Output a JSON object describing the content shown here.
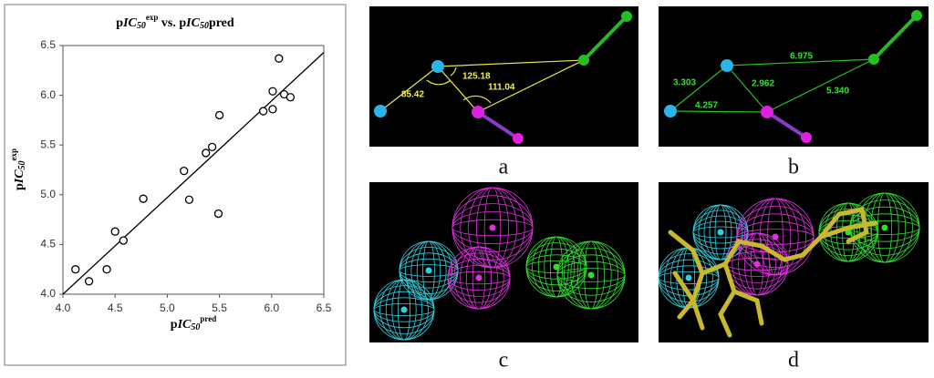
{
  "chart_data": {
    "type": "scatter",
    "title": [
      "p",
      "IC",
      "50",
      "exp",
      " vs. ",
      "p",
      "IC",
      "50",
      "pred"
    ],
    "x_label": [
      "p",
      "IC",
      "50",
      "pred"
    ],
    "y_label": [
      "p",
      "IC",
      "50",
      "exp"
    ],
    "x": [
      4.12,
      4.25,
      4.42,
      4.5,
      4.58,
      4.77,
      5.16,
      5.21,
      5.37,
      5.43,
      5.49,
      5.5,
      5.92,
      6.01,
      6.01,
      6.07,
      6.12,
      6.18
    ],
    "values": [
      4.25,
      4.13,
      4.25,
      4.63,
      4.54,
      4.96,
      5.24,
      4.95,
      5.42,
      5.48,
      4.81,
      5.8,
      5.84,
      5.86,
      6.04,
      6.37,
      6.01,
      5.98
    ],
    "trend_line": {
      "x": [
        4.0,
        6.5
      ],
      "y": [
        4.0,
        6.43
      ]
    },
    "xlim": [
      4.0,
      6.5
    ],
    "xticks": [
      {
        "value": 4.0,
        "label": "4.0"
      },
      {
        "value": 4.5,
        "label": "4.5"
      },
      {
        "value": 5.0,
        "label": "5.0"
      },
      {
        "value": 5.5,
        "label": "5.5"
      },
      {
        "value": 6.0,
        "label": "6.0"
      },
      {
        "value": 6.5,
        "label": "6.5"
      }
    ],
    "ylim": [
      4.0,
      6.5
    ],
    "yticks": [
      {
        "value": 4.0,
        "label": "4.0"
      },
      {
        "value": 4.5,
        "label": "4.5"
      },
      {
        "value": 5.0,
        "label": "5.0"
      },
      {
        "value": 5.5,
        "label": "5.5"
      },
      {
        "value": 6.0,
        "label": "6.0"
      },
      {
        "value": 6.5,
        "label": "6.5"
      }
    ],
    "color": "#000000"
  },
  "panels": {
    "a": {
      "caption": "a",
      "angles": [
        "125.18",
        "85.42",
        "111.04"
      ]
    },
    "b": {
      "caption": "b",
      "distances": [
        "3.303",
        "6.975",
        "2.962",
        "5.340",
        "4.257"
      ]
    },
    "c": {
      "caption": "c"
    },
    "d": {
      "caption": "d"
    }
  }
}
